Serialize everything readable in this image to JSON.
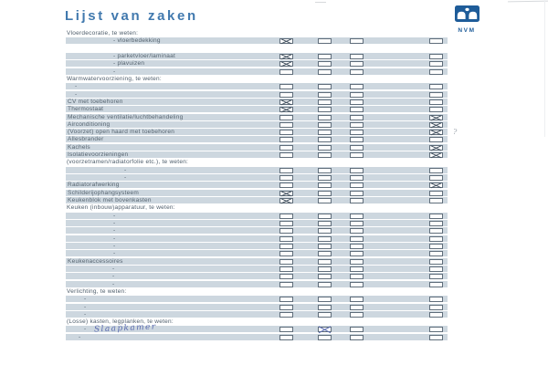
{
  "document": {
    "title": "Lijst van zaken",
    "logo_text": "NVM"
  },
  "colors": {
    "title_blue": "#4179ae",
    "logo_blue": "#1e5c99",
    "row_band": "#cdd7df",
    "label_text": "#55636f",
    "checkbox_border": "#5f6d7a",
    "printed_mark": "#3f4e5d",
    "handwritten_ink": "#5b6cb0",
    "pencil_gray": "#a0a8b0"
  },
  "checkbox_columns": 4,
  "rows": [
    {
      "t": "h",
      "label": "Vloerdecoratie, te weten:"
    },
    {
      "t": "i",
      "label": "vloerbedekking",
      "dash": 1,
      "ind": 52,
      "checks": [
        1,
        0,
        0,
        0
      ]
    },
    {
      "t": "b"
    },
    {
      "t": "i",
      "label": "parketvloer/laminaat",
      "dash": 1,
      "ind": 52,
      "checks": [
        1,
        0,
        0,
        0
      ]
    },
    {
      "t": "i",
      "label": "plavuizen",
      "dash": 1,
      "ind": 52,
      "checks": [
        1,
        0,
        0,
        0
      ]
    },
    {
      "t": "i",
      "label": "",
      "dash": 1,
      "ind": 52,
      "checks": [
        0,
        0,
        0,
        0
      ]
    },
    {
      "t": "h",
      "label": "Warmwatervoorziening, te weten:"
    },
    {
      "t": "i",
      "label": "",
      "dash": 1,
      "ind": 10,
      "checks": [
        0,
        0,
        0,
        0
      ]
    },
    {
      "t": "i",
      "label": "",
      "dash": 1,
      "ind": 10,
      "checks": [
        0,
        0,
        0,
        0
      ]
    },
    {
      "t": "i",
      "label": "CV met toebehoren",
      "ind": 2,
      "checks": [
        1,
        0,
        0,
        0
      ]
    },
    {
      "t": "i",
      "label": "Thermostaat",
      "ind": 2,
      "checks": [
        1,
        0,
        0,
        0
      ]
    },
    {
      "t": "i",
      "label": "Mechanische ventilatie/luchtbehandeling",
      "ind": 2,
      "checks": [
        0,
        0,
        0,
        1
      ]
    },
    {
      "t": "i",
      "label": "Airconditioning",
      "ind": 2,
      "checks": [
        0,
        0,
        0,
        1
      ]
    },
    {
      "t": "i",
      "label": "(Voorzet) open haard met toebehoren",
      "ind": 2,
      "checks": [
        0,
        0,
        0,
        1
      ],
      "note": "?"
    },
    {
      "t": "i",
      "label": "Allesbrander",
      "ind": 2,
      "checks": [
        0,
        0,
        0,
        0
      ]
    },
    {
      "t": "i",
      "label": "Kachels",
      "ind": 2,
      "checks": [
        0,
        0,
        0,
        1
      ]
    },
    {
      "t": "i",
      "label": "Isolatievoorzieningen",
      "ind": 2,
      "checks": [
        0,
        0,
        0,
        1
      ]
    },
    {
      "t": "h",
      "label": "(voorzetramen/radiatorfolie etc.), te weten:"
    },
    {
      "t": "i",
      "label": "",
      "dash": 1,
      "ind": 64,
      "checks": [
        0,
        0,
        0,
        0
      ]
    },
    {
      "t": "i",
      "label": "",
      "dash": 1,
      "ind": 64,
      "checks": [
        0,
        0,
        0,
        0
      ]
    },
    {
      "t": "i",
      "label": "Radiatorafwerking",
      "ind": 2,
      "checks": [
        0,
        0,
        0,
        1
      ]
    },
    {
      "t": "i",
      "label": "Schilderijophangsysteem",
      "ind": 2,
      "checks": [
        1,
        0,
        0,
        0
      ]
    },
    {
      "t": "i",
      "label": "Keukenblok met bovenkasten",
      "ind": 2,
      "checks": [
        1,
        0,
        0,
        0
      ]
    },
    {
      "t": "h",
      "label": "Keuken (inbouw)apparatuur, te weten:"
    },
    {
      "t": "i",
      "label": "",
      "dash": 1,
      "ind": 52,
      "checks": [
        0,
        0,
        0,
        0
      ]
    },
    {
      "t": "i",
      "label": "",
      "dash": 1,
      "ind": 52,
      "checks": [
        0,
        0,
        0,
        0
      ]
    },
    {
      "t": "i",
      "label": "",
      "dash": 1,
      "ind": 52,
      "checks": [
        0,
        0,
        0,
        0
      ]
    },
    {
      "t": "i",
      "label": "",
      "dash": 1,
      "ind": 52,
      "checks": [
        0,
        0,
        0,
        0
      ]
    },
    {
      "t": "i",
      "label": "",
      "dash": 1,
      "ind": 52,
      "checks": [
        0,
        0,
        0,
        0
      ]
    },
    {
      "t": "i",
      "label": "",
      "dash": 1,
      "ind": 52,
      "checks": [
        0,
        0,
        0,
        0
      ]
    },
    {
      "t": "i",
      "label": "Keukenaccessoires",
      "ind": 2,
      "checks": [
        0,
        0,
        0,
        0
      ]
    },
    {
      "t": "i",
      "label": "",
      "dash": 1,
      "ind": 51,
      "checks": [
        0,
        0,
        0,
        0
      ]
    },
    {
      "t": "i",
      "label": "",
      "dash": 1,
      "ind": 51,
      "checks": [
        0,
        0,
        0,
        0
      ]
    },
    {
      "t": "i",
      "label": "",
      "dash": 1,
      "ind": 51,
      "checks": [
        0,
        0,
        0,
        0
      ]
    },
    {
      "t": "h",
      "label": "Verlichting, te weten:"
    },
    {
      "t": "i",
      "label": "",
      "dash": 1,
      "ind": 20,
      "checks": [
        0,
        0,
        0,
        0
      ]
    },
    {
      "t": "i",
      "label": "",
      "dash": 1,
      "ind": 20,
      "checks": [
        0,
        0,
        0,
        0
      ]
    },
    {
      "t": "i",
      "label": "",
      "dash": 1,
      "ind": 20,
      "checks": [
        0,
        0,
        0,
        0
      ]
    },
    {
      "t": "h",
      "label": "(Losse) kasten, legplanken, te weten:"
    },
    {
      "t": "i",
      "label": "",
      "dash": 1,
      "ind": 20,
      "hand": "Slaapkamer",
      "checks": [
        0,
        2,
        0,
        0
      ]
    },
    {
      "t": "i",
      "label": "",
      "dash": 1,
      "ind": 14,
      "checks": [
        0,
        0,
        0,
        0
      ]
    }
  ],
  "annotations": {
    "handwritten_entry": "Slaapkamer",
    "pencil_note": "?"
  }
}
